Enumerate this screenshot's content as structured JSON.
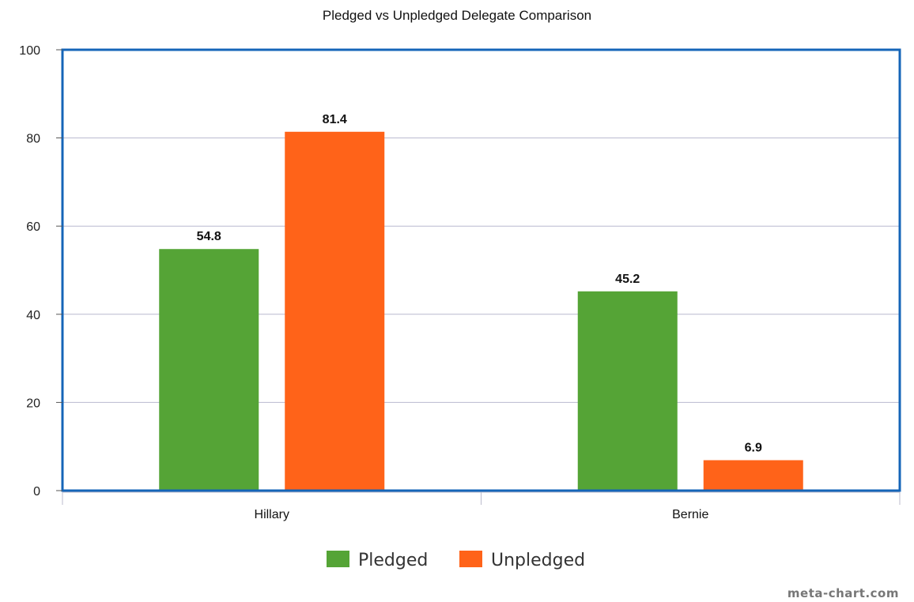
{
  "watermark": "meta-chart.com",
  "chart_data": {
    "type": "bar",
    "title": "Pledged vs Unpledged Delegate Comparison",
    "xlabel": "",
    "ylabel": "",
    "categories": [
      "Hillary",
      "Bernie"
    ],
    "ylim": [
      0,
      100
    ],
    "yticks": [
      0,
      20,
      40,
      60,
      80,
      100
    ],
    "grid": true,
    "legend_position": "bottom",
    "series": [
      {
        "name": "Pledged",
        "color": "#55a436",
        "values": [
          54.8,
          45.2
        ],
        "labels": [
          "54.8",
          "45.2"
        ]
      },
      {
        "name": "Unpledged",
        "color": "#ff6319",
        "values": [
          81.4,
          6.9
        ],
        "labels": [
          "81.4",
          "6.9"
        ]
      }
    ],
    "frame_color": "#1565b8",
    "grid_color": "#b9b9cf"
  }
}
